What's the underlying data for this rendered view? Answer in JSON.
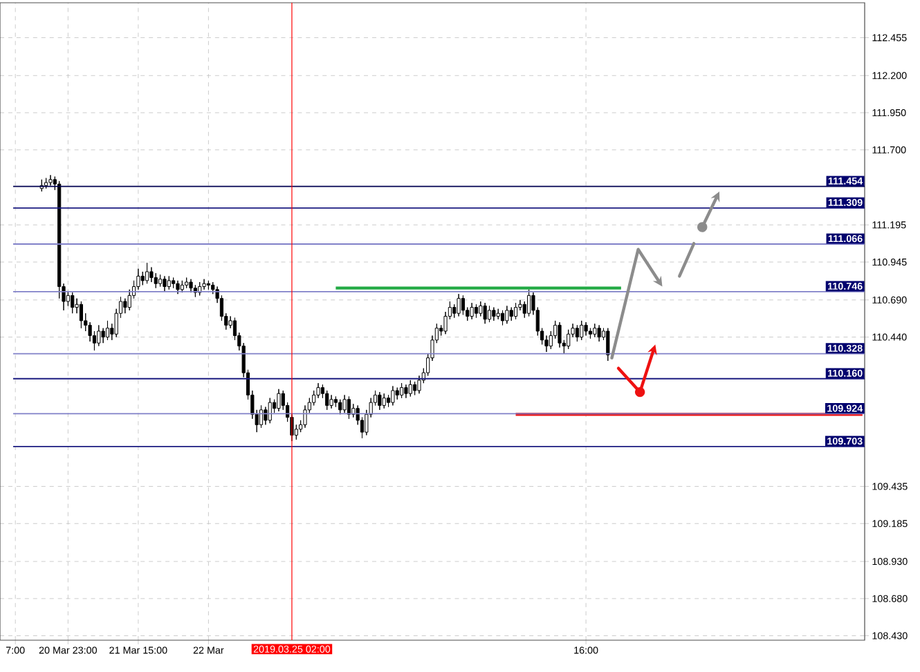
{
  "chart_data": {
    "type": "candlestick",
    "categories": [
      "7:00",
      null,
      null,
      null,
      null,
      null,
      null,
      null,
      null,
      null,
      null,
      null,
      "20 Mar 23:00",
      null,
      null,
      null,
      null,
      null,
      null,
      null,
      null,
      null,
      null,
      null,
      null,
      null,
      null,
      null,
      "21 Mar 15:00",
      null,
      null,
      null,
      null,
      null,
      null,
      null,
      null,
      null,
      null,
      null,
      null,
      null,
      null,
      null,
      "22 Mar",
      null,
      null,
      null,
      null,
      null,
      null,
      null,
      null,
      null,
      null,
      null,
      null,
      null,
      null,
      null,
      null,
      null,
      null,
      null,
      null,
      null,
      null,
      null,
      null,
      null,
      null,
      null,
      null,
      null,
      null,
      null,
      null,
      null,
      null,
      null,
      null,
      null,
      null,
      null,
      null,
      null,
      null,
      null,
      null,
      null,
      null,
      null,
      null,
      null,
      null,
      null,
      null,
      null,
      null,
      null,
      null,
      null,
      null,
      null,
      null,
      null,
      null,
      null,
      null,
      null,
      null,
      null,
      null,
      null,
      null,
      null,
      null,
      null,
      null,
      null,
      null,
      null,
      null,
      null,
      null,
      null,
      null,
      null,
      null,
      null,
      "16:00",
      null,
      null,
      null,
      null,
      null,
      null,
      null,
      null,
      null,
      null,
      null,
      null,
      null,
      null,
      null,
      null,
      null,
      null,
      null,
      null,
      null,
      null,
      null,
      null,
      null,
      null,
      null,
      null,
      null,
      null,
      null,
      null,
      null,
      null,
      null,
      null,
      null,
      null,
      null,
      null,
      null,
      null,
      null,
      null,
      null,
      null,
      null,
      null,
      null,
      null,
      null,
      null,
      null,
      null,
      null,
      null,
      null,
      null,
      null,
      null,
      null,
      null,
      null
    ],
    "ohlc": [
      null,
      null,
      null,
      null,
      null,
      null,
      [
        111.44,
        111.5,
        111.42,
        111.46
      ],
      [
        111.46,
        111.51,
        111.44,
        111.48
      ],
      [
        111.48,
        111.53,
        111.46,
        111.5
      ],
      [
        111.5,
        111.52,
        111.43,
        111.47
      ],
      [
        111.47,
        111.49,
        110.7,
        110.78
      ],
      [
        110.78,
        110.8,
        110.62,
        110.68
      ],
      [
        110.68,
        110.75,
        110.65,
        110.72
      ],
      [
        110.72,
        110.74,
        110.6,
        110.64
      ],
      [
        110.64,
        110.7,
        110.6,
        110.66
      ],
      [
        110.66,
        110.68,
        110.5,
        110.55
      ],
      [
        110.55,
        110.6,
        110.48,
        110.52
      ],
      [
        110.52,
        110.54,
        110.41,
        110.45
      ],
      [
        110.45,
        110.48,
        110.35,
        110.4
      ],
      [
        110.4,
        110.52,
        110.38,
        110.48
      ],
      [
        110.48,
        110.5,
        110.4,
        110.44
      ],
      [
        110.44,
        110.55,
        110.42,
        110.5
      ],
      [
        110.5,
        110.53,
        110.42,
        110.46
      ],
      [
        110.46,
        110.63,
        110.44,
        110.6
      ],
      [
        110.6,
        110.71,
        110.57,
        110.68
      ],
      [
        110.68,
        110.7,
        110.6,
        110.64
      ],
      [
        110.64,
        110.76,
        110.62,
        110.72
      ],
      [
        110.72,
        110.82,
        110.7,
        110.78
      ],
      [
        110.78,
        110.9,
        110.76,
        110.85
      ],
      [
        110.85,
        110.88,
        110.79,
        110.82
      ],
      [
        110.82,
        110.94,
        110.8,
        110.88
      ],
      [
        110.88,
        110.91,
        110.81,
        110.84
      ],
      [
        110.84,
        110.87,
        110.77,
        110.8
      ],
      [
        110.8,
        110.86,
        110.78,
        110.83
      ],
      [
        110.83,
        110.85,
        110.75,
        110.78
      ],
      [
        110.78,
        110.85,
        110.76,
        110.82
      ],
      [
        110.82,
        110.84,
        110.77,
        110.8
      ],
      [
        110.8,
        110.82,
        110.73,
        110.76
      ],
      [
        110.76,
        110.82,
        110.74,
        110.79
      ],
      [
        110.79,
        110.84,
        110.77,
        110.81
      ],
      [
        110.81,
        110.83,
        110.74,
        110.77
      ],
      [
        110.77,
        110.79,
        110.71,
        110.74
      ],
      [
        110.74,
        110.81,
        110.72,
        110.78
      ],
      [
        110.78,
        110.83,
        110.76,
        110.8
      ],
      [
        110.8,
        110.82,
        110.76,
        110.79
      ],
      [
        110.79,
        110.81,
        110.73,
        110.76
      ],
      [
        110.76,
        110.78,
        110.67,
        110.7
      ],
      [
        110.7,
        110.72,
        110.55,
        110.58
      ],
      [
        110.58,
        110.6,
        110.49,
        110.52
      ],
      [
        110.52,
        110.58,
        110.5,
        110.55
      ],
      [
        110.55,
        110.57,
        110.42,
        110.45
      ],
      [
        110.45,
        110.47,
        110.35,
        110.38
      ],
      [
        110.38,
        110.4,
        110.17,
        110.2
      ],
      [
        110.2,
        110.22,
        110.02,
        110.05
      ],
      [
        110.05,
        110.08,
        109.89,
        109.92
      ],
      [
        109.92,
        109.95,
        109.8,
        109.85
      ],
      [
        109.85,
        109.98,
        109.83,
        109.95
      ],
      [
        109.95,
        109.97,
        109.85,
        109.88
      ],
      [
        109.88,
        110.03,
        109.86,
        110.0
      ],
      [
        110.0,
        110.02,
        109.93,
        109.96
      ],
      [
        109.96,
        110.09,
        109.94,
        110.06
      ],
      [
        110.06,
        110.08,
        109.95,
        109.98
      ],
      [
        109.98,
        110.0,
        109.87,
        109.9
      ],
      [
        109.9,
        109.92,
        109.74,
        109.78
      ],
      [
        109.78,
        109.85,
        109.75,
        109.82
      ],
      [
        109.82,
        109.88,
        109.8,
        109.85
      ],
      [
        109.85,
        109.98,
        109.83,
        109.95
      ],
      [
        109.95,
        110.03,
        109.93,
        110.0
      ],
      [
        110.0,
        110.08,
        109.98,
        110.05
      ],
      [
        110.05,
        110.13,
        110.03,
        110.1
      ],
      [
        110.1,
        110.12,
        110.03,
        110.06
      ],
      [
        110.06,
        110.08,
        109.95,
        109.98
      ],
      [
        109.98,
        110.05,
        109.96,
        110.02
      ],
      [
        110.02,
        110.04,
        109.97,
        110.0
      ],
      [
        110.0,
        110.02,
        109.92,
        109.95
      ],
      [
        109.95,
        110.05,
        109.93,
        110.02
      ],
      [
        110.02,
        110.04,
        109.89,
        109.92
      ],
      [
        109.92,
        109.99,
        109.9,
        109.96
      ],
      [
        109.96,
        109.98,
        109.85,
        109.88
      ],
      [
        109.88,
        109.9,
        109.76,
        109.8
      ],
      [
        109.8,
        109.95,
        109.78,
        109.92
      ],
      [
        109.92,
        110.03,
        109.9,
        110.0
      ],
      [
        110.0,
        110.08,
        109.98,
        110.05
      ],
      [
        110.05,
        110.07,
        109.95,
        109.98
      ],
      [
        109.98,
        110.06,
        109.96,
        110.03
      ],
      [
        110.03,
        110.05,
        109.97,
        110.0
      ],
      [
        110.0,
        110.11,
        109.98,
        110.08
      ],
      [
        110.08,
        110.1,
        110.02,
        110.05
      ],
      [
        110.05,
        110.13,
        110.03,
        110.1
      ],
      [
        110.1,
        110.12,
        110.03,
        110.06
      ],
      [
        110.06,
        110.15,
        110.04,
        110.12
      ],
      [
        110.12,
        110.14,
        110.05,
        110.08
      ],
      [
        110.08,
        110.18,
        110.06,
        110.15
      ],
      [
        110.15,
        110.23,
        110.13,
        110.2
      ],
      [
        110.2,
        110.33,
        110.18,
        110.3
      ],
      [
        110.3,
        110.45,
        110.28,
        110.42
      ],
      [
        110.42,
        110.53,
        110.4,
        110.5
      ],
      [
        110.5,
        110.52,
        110.45,
        110.48
      ],
      [
        110.48,
        110.61,
        110.46,
        110.58
      ],
      [
        110.58,
        110.68,
        110.56,
        110.64
      ],
      [
        110.64,
        110.66,
        110.57,
        110.6
      ],
      [
        110.6,
        110.73,
        110.58,
        110.7
      ],
      [
        110.7,
        110.72,
        110.59,
        110.62
      ],
      [
        110.62,
        110.64,
        110.55,
        110.58
      ],
      [
        110.58,
        110.67,
        110.56,
        110.64
      ],
      [
        110.64,
        110.66,
        110.57,
        110.6
      ],
      [
        110.6,
        110.68,
        110.58,
        110.65
      ],
      [
        110.65,
        110.67,
        110.53,
        110.56
      ],
      [
        110.56,
        110.65,
        110.54,
        110.62
      ],
      [
        110.62,
        110.64,
        110.55,
        110.58
      ],
      [
        110.58,
        110.63,
        110.56,
        110.6
      ],
      [
        110.6,
        110.62,
        110.52,
        110.55
      ],
      [
        110.55,
        110.65,
        110.53,
        110.62
      ],
      [
        110.62,
        110.64,
        110.55,
        110.58
      ],
      [
        110.58,
        110.67,
        110.56,
        110.64
      ],
      [
        110.64,
        110.69,
        110.62,
        110.66
      ],
      [
        110.66,
        110.68,
        110.57,
        110.6
      ],
      [
        110.6,
        110.76,
        110.58,
        110.72
      ],
      [
        110.72,
        110.74,
        110.59,
        110.62
      ],
      [
        110.62,
        110.64,
        110.45,
        110.48
      ],
      [
        110.48,
        110.5,
        110.39,
        110.42
      ],
      [
        110.42,
        110.45,
        110.34,
        110.38
      ],
      [
        110.38,
        110.48,
        110.36,
        110.45
      ],
      [
        110.45,
        110.55,
        110.43,
        110.52
      ],
      [
        110.52,
        110.54,
        110.37,
        110.4
      ],
      [
        110.4,
        110.42,
        110.33,
        110.38
      ],
      [
        110.38,
        110.49,
        110.36,
        110.46
      ],
      [
        110.46,
        110.53,
        110.44,
        110.5
      ],
      [
        110.5,
        110.52,
        110.41,
        110.44
      ],
      [
        110.44,
        110.55,
        110.42,
        110.52
      ],
      [
        110.52,
        110.54,
        110.45,
        110.48
      ],
      [
        110.48,
        110.5,
        110.43,
        110.46
      ],
      [
        110.46,
        110.53,
        110.44,
        110.5
      ],
      [
        110.5,
        110.52,
        110.41,
        110.44
      ],
      [
        110.44,
        110.5,
        110.42,
        110.48
      ],
      [
        110.48,
        110.5,
        110.28,
        110.32
      ],
      null,
      null,
      null,
      null,
      null,
      null,
      null,
      null,
      null,
      null,
      null,
      null,
      null,
      null,
      null,
      null,
      null,
      null,
      null,
      null,
      null,
      null,
      null,
      null,
      null,
      null,
      null,
      null,
      null,
      null,
      null,
      null,
      null,
      null,
      null,
      null,
      null,
      null,
      null,
      null,
      null,
      null,
      null,
      null,
      null,
      null,
      null,
      null,
      null,
      null,
      null,
      null,
      null,
      null,
      null,
      null,
      null,
      null
    ],
    "series": [
      {
        "type": "line",
        "color": "#22aa44",
        "values": [
          null,
          null,
          null,
          null,
          null,
          null,
          null,
          null,
          null,
          null,
          null,
          null,
          null,
          null,
          null,
          null,
          null,
          null,
          null,
          null,
          null,
          null,
          null,
          null,
          null,
          null,
          null,
          null,
          null,
          null,
          null,
          null,
          null,
          null,
          null,
          null,
          null,
          null,
          null,
          null,
          null,
          null,
          null,
          null,
          null,
          null,
          null,
          null,
          null,
          null,
          null,
          null,
          null,
          null,
          null,
          null,
          null,
          null,
          null,
          null,
          null,
          null,
          null,
          null,
          null,
          null,
          null,
          null,
          null,
          null,
          null,
          null,
          null,
          110.77,
          null,
          null,
          null,
          null,
          null,
          null,
          null,
          null,
          null,
          null,
          null,
          null,
          null,
          null,
          null,
          null,
          null,
          null,
          null,
          null,
          null,
          null,
          null,
          null,
          null,
          null,
          null,
          null,
          null,
          null,
          null,
          null,
          null,
          null,
          null,
          null,
          null,
          null,
          null,
          null,
          null,
          null,
          null,
          null,
          null,
          null,
          null,
          null,
          null,
          null,
          null,
          null,
          null,
          null,
          null,
          null,
          null,
          null,
          null,
          null,
          null,
          null,
          null,
          null,
          110.77,
          null,
          null,
          null,
          null,
          null,
          null,
          null,
          null,
          null,
          null,
          null,
          null,
          null,
          null,
          null,
          null,
          null,
          null,
          null,
          null,
          null,
          null,
          null,
          null,
          null,
          null,
          null,
          null,
          null,
          null,
          null,
          null,
          null,
          null,
          null,
          null,
          null,
          null,
          null,
          null,
          null,
          null,
          null,
          null,
          null,
          null,
          null,
          null,
          null,
          null,
          null,
          null,
          null,
          null,
          null
        ]
      },
      {
        "type": "line",
        "color": "#ee1111",
        "values": [
          null,
          null,
          null,
          null,
          null,
          null,
          null,
          null,
          null,
          null,
          null,
          null,
          null,
          null,
          null,
          null,
          null,
          null,
          null,
          null,
          null,
          null,
          null,
          null,
          null,
          null,
          null,
          null,
          null,
          null,
          null,
          null,
          null,
          null,
          null,
          null,
          null,
          null,
          null,
          null,
          null,
          null,
          null,
          null,
          null,
          null,
          null,
          null,
          null,
          null,
          null,
          null,
          null,
          null,
          null,
          null,
          null,
          null,
          null,
          null,
          null,
          null,
          null,
          null,
          null,
          null,
          null,
          null,
          null,
          null,
          null,
          null,
          null,
          null,
          null,
          null,
          null,
          null,
          null,
          null,
          null,
          null,
          null,
          null,
          null,
          null,
          null,
          null,
          null,
          null,
          null,
          null,
          null,
          null,
          null,
          null,
          null,
          null,
          null,
          null,
          null,
          null,
          null,
          null,
          null,
          null,
          null,
          null,
          null,
          null,
          null,
          null,
          null,
          null,
          109.92,
          null,
          null,
          null,
          null,
          null,
          null,
          null,
          null,
          null,
          null,
          null,
          null,
          null,
          null,
          null,
          null,
          null,
          null,
          null,
          null,
          null,
          null,
          null,
          null,
          null,
          null,
          null,
          null,
          null,
          null,
          null,
          null,
          null,
          null,
          null,
          null,
          null,
          null,
          null,
          null,
          null,
          null,
          null,
          null,
          null,
          null,
          null,
          null,
          null,
          null,
          null,
          null,
          null,
          null,
          null,
          null,
          null,
          null,
          null,
          null,
          null,
          null,
          null,
          null,
          null,
          null,
          null,
          null,
          null,
          null,
          null,
          null,
          null,
          null,
          null,
          null,
          null,
          null,
          109.92
        ]
      }
    ],
    "ylim": [
      108.4,
      112.69
    ],
    "yticks": [
      {
        "value": 112.455,
        "label": "112.455"
      },
      {
        "value": 112.2,
        "label": "112.200"
      },
      {
        "value": 111.95,
        "label": "111.950"
      },
      {
        "value": 111.7,
        "label": "111.700"
      },
      {
        "value": 111.195,
        "label": "111.195"
      },
      {
        "value": 110.945,
        "label": "110.945"
      },
      {
        "value": 110.69,
        "label": "110.690"
      },
      {
        "value": 110.44,
        "label": "110.440"
      },
      {
        "value": 109.435,
        "label": "109.435"
      },
      {
        "value": 109.185,
        "label": "109.185"
      },
      {
        "value": 108.93,
        "label": "108.930"
      },
      {
        "value": 108.68,
        "label": "108.680"
      },
      {
        "value": 108.43,
        "label": "108.430"
      }
    ],
    "ref_lines": [
      {
        "axis": "y",
        "value": 111.454,
        "label": "111.454",
        "color": "#000050"
      },
      {
        "axis": "y",
        "value": 111.309,
        "label": "111.309",
        "color": "#1a1a80"
      },
      {
        "axis": "y",
        "value": 111.066,
        "label": "111.066",
        "color": "#8080c8"
      },
      {
        "axis": "y",
        "value": 110.746,
        "label": "110.746",
        "color": "#8080c8"
      },
      {
        "axis": "y",
        "value": 110.328,
        "label": "110.328",
        "color": "#8080c8"
      },
      {
        "axis": "y",
        "value": 110.16,
        "label": "110.160",
        "color": "#1a1a80"
      },
      {
        "axis": "y",
        "value": 109.924,
        "label": "109.924",
        "color": "#8080c8"
      },
      {
        "axis": "y",
        "value": 109.703,
        "label": "109.703",
        "color": "#1a1a80"
      }
    ],
    "annotations": [
      "2019.03.25 02:00"
    ],
    "grid": true
  }
}
